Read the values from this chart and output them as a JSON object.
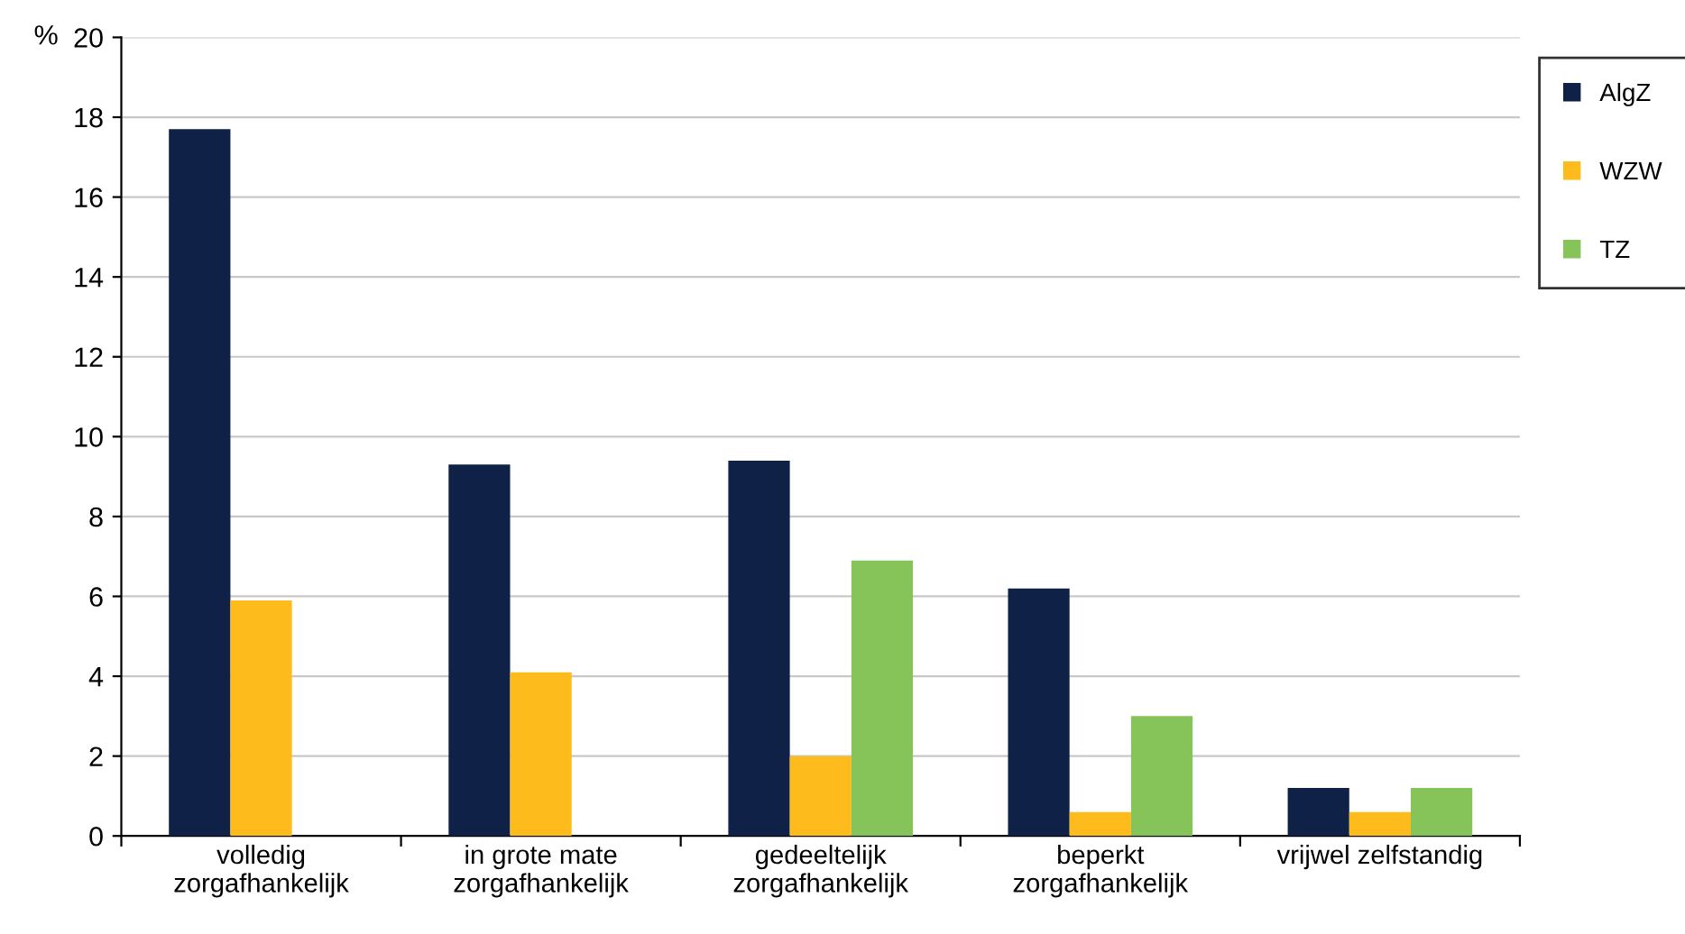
{
  "chart_data": {
    "type": "bar",
    "ylabel": "%",
    "categories": [
      "volledig\nzorgafhankelijk",
      "in grote mate\nzorgafhankelijk",
      "gedeeltelijk\nzorgafhankelijk",
      "beperkt\nzorgafhankelijk",
      "vrijwel zelfstandig"
    ],
    "series": [
      {
        "name": "AlgZ",
        "color": "#0f2147",
        "values": [
          17.7,
          9.3,
          9.4,
          6.2,
          1.2
        ]
      },
      {
        "name": "WZW",
        "color": "#fdbb1c",
        "values": [
          5.9,
          4.1,
          2.0,
          0.6,
          0.6
        ]
      },
      {
        "name": "TZ",
        "color": "#86c45a",
        "values": [
          null,
          null,
          6.9,
          3.0,
          1.2
        ]
      }
    ],
    "ylim": [
      0,
      20
    ],
    "yticks": [
      0,
      2,
      4,
      6,
      8,
      10,
      12,
      14,
      16,
      18,
      20
    ],
    "grid": "y",
    "legend": "top right"
  }
}
